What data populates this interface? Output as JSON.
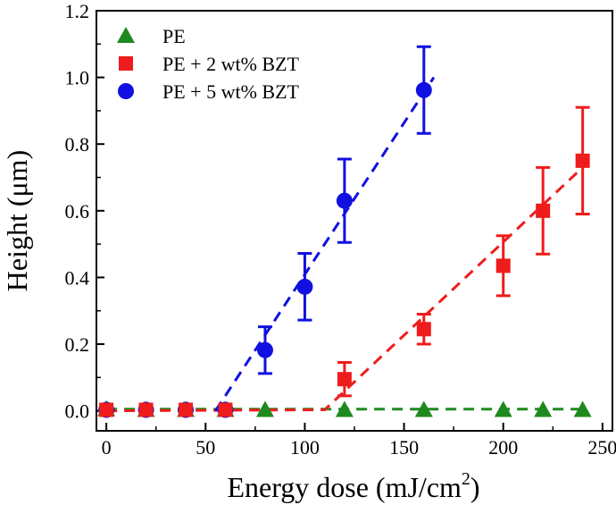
{
  "chart_data": {
    "type": "scatter",
    "xlabel": "Energy dose (mJ/cm",
    "xlabel_sup": "2",
    "xlabel_suffix": ")",
    "ylabel": "Height (μm)",
    "xlim": [
      -5,
      255
    ],
    "ylim": [
      -0.06,
      1.2
    ],
    "xticks": [
      0,
      50,
      100,
      150,
      200,
      250
    ],
    "xtick_labels": [
      "0",
      "50",
      "100",
      "150",
      "200",
      "250"
    ],
    "yticks": [
      0.0,
      0.2,
      0.4,
      0.6,
      0.8,
      1.0,
      1.2
    ],
    "ytick_labels": [
      "0.0",
      "0.2",
      "0.4",
      "0.6",
      "0.8",
      "1.0",
      "1.2"
    ],
    "legend_position": "top-left",
    "series": [
      {
        "name": "PE",
        "marker": "triangle",
        "color": "#1e8a1e",
        "x": [
          0,
          20,
          40,
          60,
          80,
          120,
          160,
          200,
          220,
          240
        ],
        "y": [
          0.005,
          0.003,
          0.003,
          0.003,
          0.003,
          0.003,
          0.003,
          0.003,
          0.003,
          0.003
        ],
        "err": [
          0,
          0,
          0,
          0,
          0,
          0,
          0,
          0,
          0,
          0
        ],
        "fit": [
          [
            0,
            0.005
          ],
          [
            240,
            0.005
          ]
        ]
      },
      {
        "name": "PE + 2 wt% BZT",
        "marker": "square",
        "color": "#ee1c1c",
        "x": [
          0,
          20,
          40,
          60,
          120,
          160,
          200,
          220,
          240
        ],
        "y": [
          0.003,
          0.003,
          0.003,
          0.003,
          0.095,
          0.245,
          0.435,
          0.6,
          0.75
        ],
        "err": [
          0,
          0,
          0,
          0,
          0.05,
          0.045,
          0.09,
          0.13,
          0.16
        ],
        "fit": [
          [
            0,
            0.0
          ],
          [
            110,
            0.003
          ],
          [
            240,
            0.73
          ]
        ]
      },
      {
        "name": "PE + 5 wt% BZT",
        "marker": "circle",
        "color": "#1010e0",
        "x": [
          0,
          20,
          40,
          60,
          80,
          100,
          120,
          160
        ],
        "y": [
          0.003,
          0.003,
          0.003,
          0.003,
          0.182,
          0.372,
          0.63,
          0.962
        ],
        "err": [
          0,
          0,
          0,
          0,
          0.07,
          0.1,
          0.125,
          0.13
        ],
        "fit": [
          [
            55,
            0.0
          ],
          [
            165,
            1.0
          ]
        ]
      }
    ]
  }
}
